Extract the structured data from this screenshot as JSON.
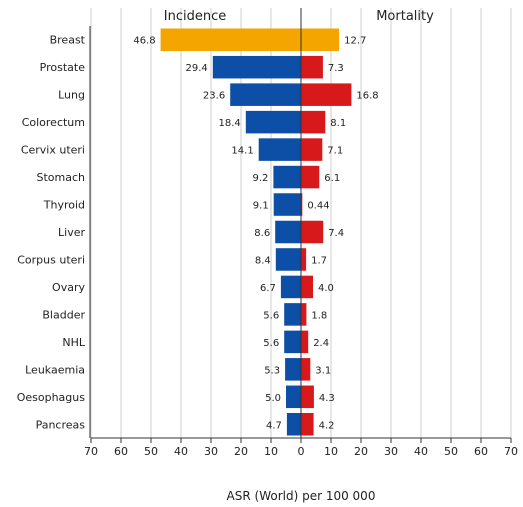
{
  "chart_data": {
    "type": "bar",
    "orientation": "horizontal-butterfly",
    "left_panel_title": "Incidence",
    "right_panel_title": "Mortality",
    "xlabel": "ASR (World) per 100 000",
    "categories": [
      "Breast",
      "Prostate",
      "Lung",
      "Colorectum",
      "Cervix uteri",
      "Stomach",
      "Thyroid",
      "Liver",
      "Corpus uteri",
      "Ovary",
      "Bladder",
      "NHL",
      "Leukaemia",
      "Oesophagus",
      "Pancreas"
    ],
    "series": [
      {
        "name": "Incidence",
        "side": "left",
        "values": [
          46.8,
          29.4,
          23.6,
          18.4,
          14.1,
          9.2,
          9.1,
          8.6,
          8.4,
          6.7,
          5.6,
          5.6,
          5.3,
          5.0,
          4.7
        ],
        "labels": [
          "46.8",
          "29.4",
          "23.6",
          "18.4",
          "14.1",
          "9.2",
          "9.1",
          "8.6",
          "8.4",
          "6.7",
          "5.6",
          "5.6",
          "5.3",
          "5.0",
          "4.7"
        ],
        "color": "#0d4ea6",
        "highlight_color": "#f5a500"
      },
      {
        "name": "Mortality",
        "side": "right",
        "values": [
          12.7,
          7.3,
          16.8,
          8.1,
          7.1,
          6.1,
          0.44,
          7.4,
          1.7,
          4.0,
          1.8,
          2.4,
          3.1,
          4.3,
          4.2
        ],
        "labels": [
          "12.7",
          "7.3",
          "16.8",
          "8.1",
          "7.1",
          "6.1",
          "0.44",
          "7.4",
          "1.7",
          "4.0",
          "1.8",
          "2.4",
          "3.1",
          "4.3",
          "4.2"
        ],
        "color": "#d7191c",
        "highlight_color": "#f5a500"
      }
    ],
    "highlight_category": "Breast",
    "x_ticks": [
      70,
      60,
      50,
      40,
      30,
      20,
      10,
      0,
      10,
      20,
      30,
      40,
      50,
      60,
      70
    ],
    "xlim": [
      -70,
      70
    ],
    "grid": true,
    "legend": "none"
  }
}
